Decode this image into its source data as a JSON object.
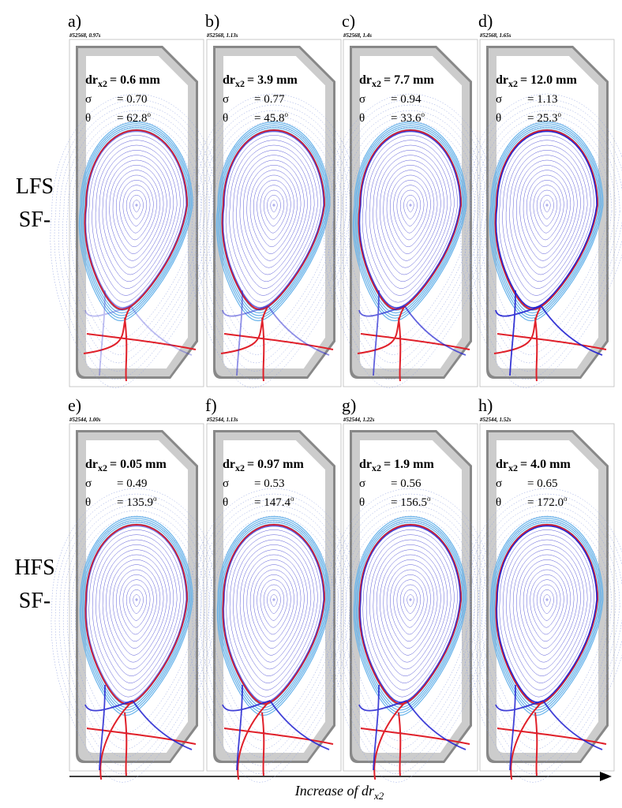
{
  "symbols": {
    "dr": "dr",
    "sub": "x2",
    "sigma": "σ",
    "theta": "θ",
    "deg": "o"
  },
  "rows": [
    {
      "label": [
        "LFS",
        "SF-"
      ],
      "panels": [
        {
          "letter": "a)",
          "shot": "#52568, 0.97s",
          "dr": "= 0.6 mm",
          "sigma": "= 0.70",
          "theta": "= 62.8"
        },
        {
          "letter": "b)",
          "shot": "#52568, 1.13s",
          "dr": "= 3.9 mm",
          "sigma": "= 0.77",
          "theta": "= 45.8"
        },
        {
          "letter": "c)",
          "shot": "#52568, 1.4s",
          "dr": "= 7.7 mm",
          "sigma": "= 0.94",
          "theta": "= 33.6"
        },
        {
          "letter": "d)",
          "shot": "#52568, 1.65s",
          "dr": "= 12.0 mm",
          "sigma": "= 1.13",
          "theta": "= 25.3"
        }
      ]
    },
    {
      "label": [
        "HFS",
        "SF-"
      ],
      "panels": [
        {
          "letter": "e)",
          "shot": "#52544, 1.00s",
          "dr": "= 0.05 mm",
          "sigma": "= 0.49",
          "theta": "= 135.9"
        },
        {
          "letter": "f)",
          "shot": "#52544, 1.13s",
          "dr": "= 0.97 mm",
          "sigma": "= 0.53",
          "theta": "= 147.4"
        },
        {
          "letter": "g)",
          "shot": "#52544, 1.22s",
          "dr": "= 1.9 mm",
          "sigma": "= 0.56",
          "theta": "= 156.5"
        },
        {
          "letter": "h)",
          "shot": "#52544, 1.52s",
          "dr": "= 4.0 mm",
          "sigma": "= 0.65",
          "theta": "= 172.0"
        }
      ]
    }
  ],
  "axis": {
    "label": "Increase of dr",
    "sub": "x2"
  }
}
